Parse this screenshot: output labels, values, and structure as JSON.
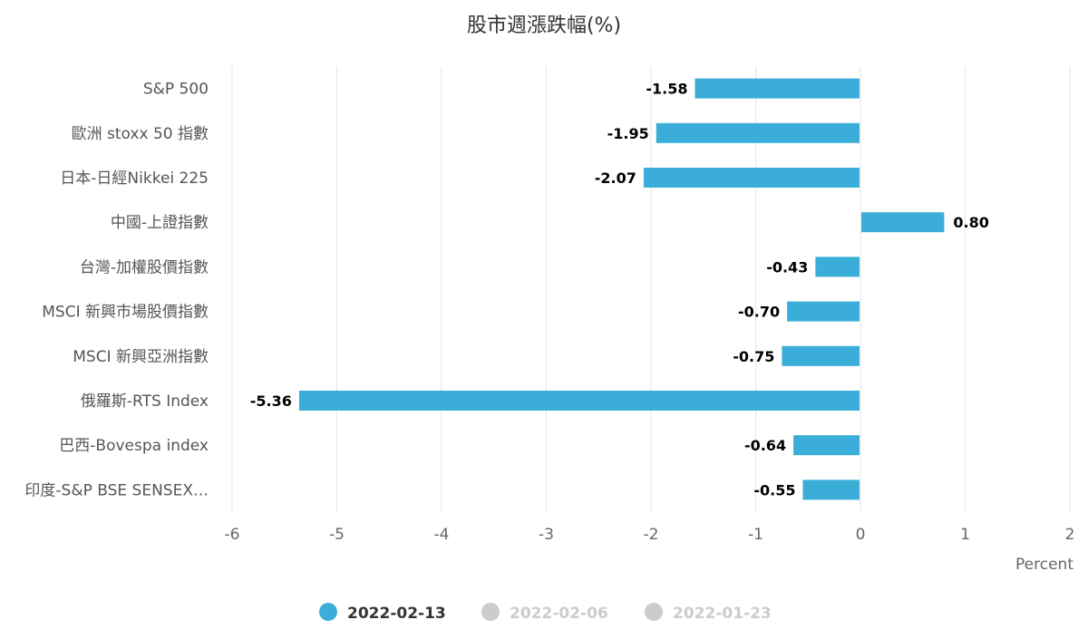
{
  "chart_data": {
    "type": "bar",
    "orientation": "horizontal",
    "title": "股市週漲跌幅(%)",
    "xlabel": "Percent",
    "ylabel": "",
    "xlim": [
      -6,
      2
    ],
    "xticks": [
      "-6",
      "-5",
      "-4",
      "-3",
      "-2",
      "-1",
      "0",
      "1",
      "2"
    ],
    "grid": true,
    "legend_position": "bottom",
    "categories": [
      "S&P 500",
      "歐洲 stoxx 50 指數",
      "日本-日經Nikkei 225",
      "中國-上證指數",
      "台灣-加權股價指數",
      "MSCI 新興市場股價指數",
      "MSCI 新興亞洲指數",
      "俄羅斯-RTS Index",
      "巴西-Bovespa index",
      "印度-S&P BSE SENSEX…"
    ],
    "series": [
      {
        "name": "2022-02-13",
        "color": "#3aaed8",
        "visible": true,
        "values": [
          -1.58,
          -1.95,
          -2.07,
          0.8,
          -0.43,
          -0.7,
          -0.75,
          -5.36,
          -0.64,
          -0.55
        ],
        "labels": [
          "-1.58",
          "-1.95",
          "-2.07",
          "0.80",
          "-0.43",
          "-0.70",
          "-0.75",
          "-5.36",
          "-0.64",
          "-0.55"
        ]
      },
      {
        "name": "2022-02-06",
        "color": "#cccccc",
        "visible": false
      },
      {
        "name": "2022-01-23",
        "color": "#cccccc",
        "visible": false
      }
    ],
    "colors": {
      "grid": "#e6e6e6",
      "axis_text": "#666666",
      "category_text": "#555555",
      "title_text": "#333333",
      "data_label": "#000000",
      "legend_active_text": "#333333",
      "legend_inactive_text": "#cccccc"
    }
  }
}
